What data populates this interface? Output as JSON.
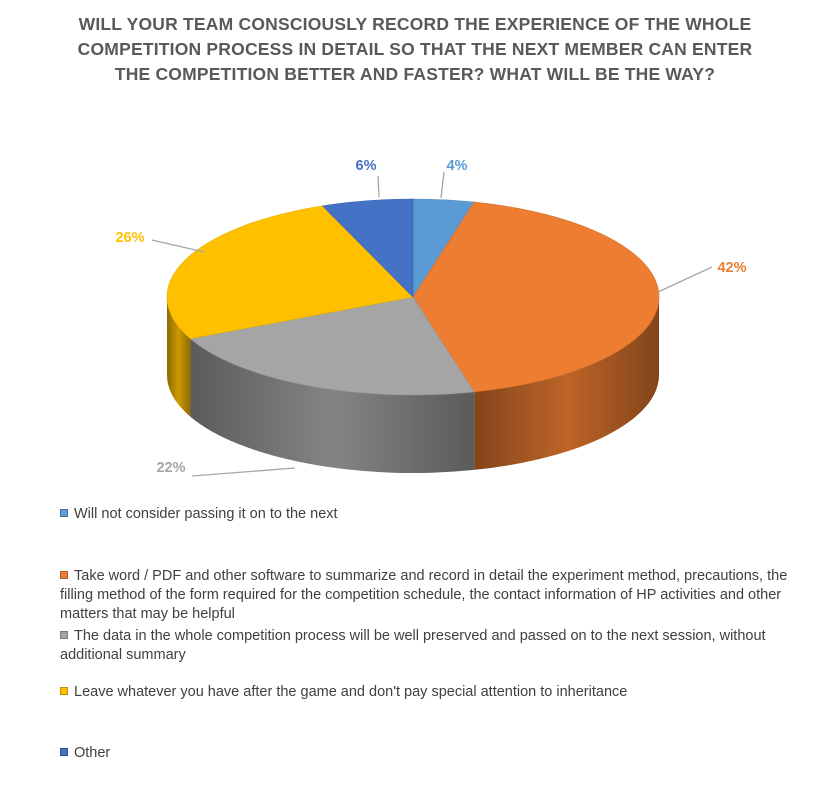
{
  "chart_data": {
    "type": "pie",
    "style": "3d",
    "title": "WILL YOUR TEAM CONSCIOUSLY RECORD THE EXPERIENCE OF THE WHOLE COMPETITION PROCESS IN DETAIL SO THAT THE NEXT MEMBER CAN ENTER THE COMPETITION BETTER AND FASTER? WHAT WILL BE THE WAY?",
    "slices": [
      {
        "label": "Will not consider passing it on to the next",
        "value": 4,
        "display": "4%",
        "color": "#5B9BD5"
      },
      {
        "label": "Take word / PDF and other software to summarize and record in detail the experiment method, precautions, the filling method of the form required for the competition schedule, the contact information of HP activities and other matters that may be helpful",
        "value": 42,
        "display": "42%",
        "color": "#ED7D31"
      },
      {
        "label": "The data in the whole competition process will be well preserved and passed on to the next session, without additional summary",
        "value": 22,
        "display": "22%",
        "color": "#A5A5A5"
      },
      {
        "label": "Leave whatever you have after the game and don't pay special attention to inheritance",
        "value": 26,
        "display": "26%",
        "color": "#FFC000"
      },
      {
        "label": "Other",
        "value": 6,
        "display": "6%",
        "color": "#4472C4"
      }
    ],
    "legend_position": "bottom"
  }
}
